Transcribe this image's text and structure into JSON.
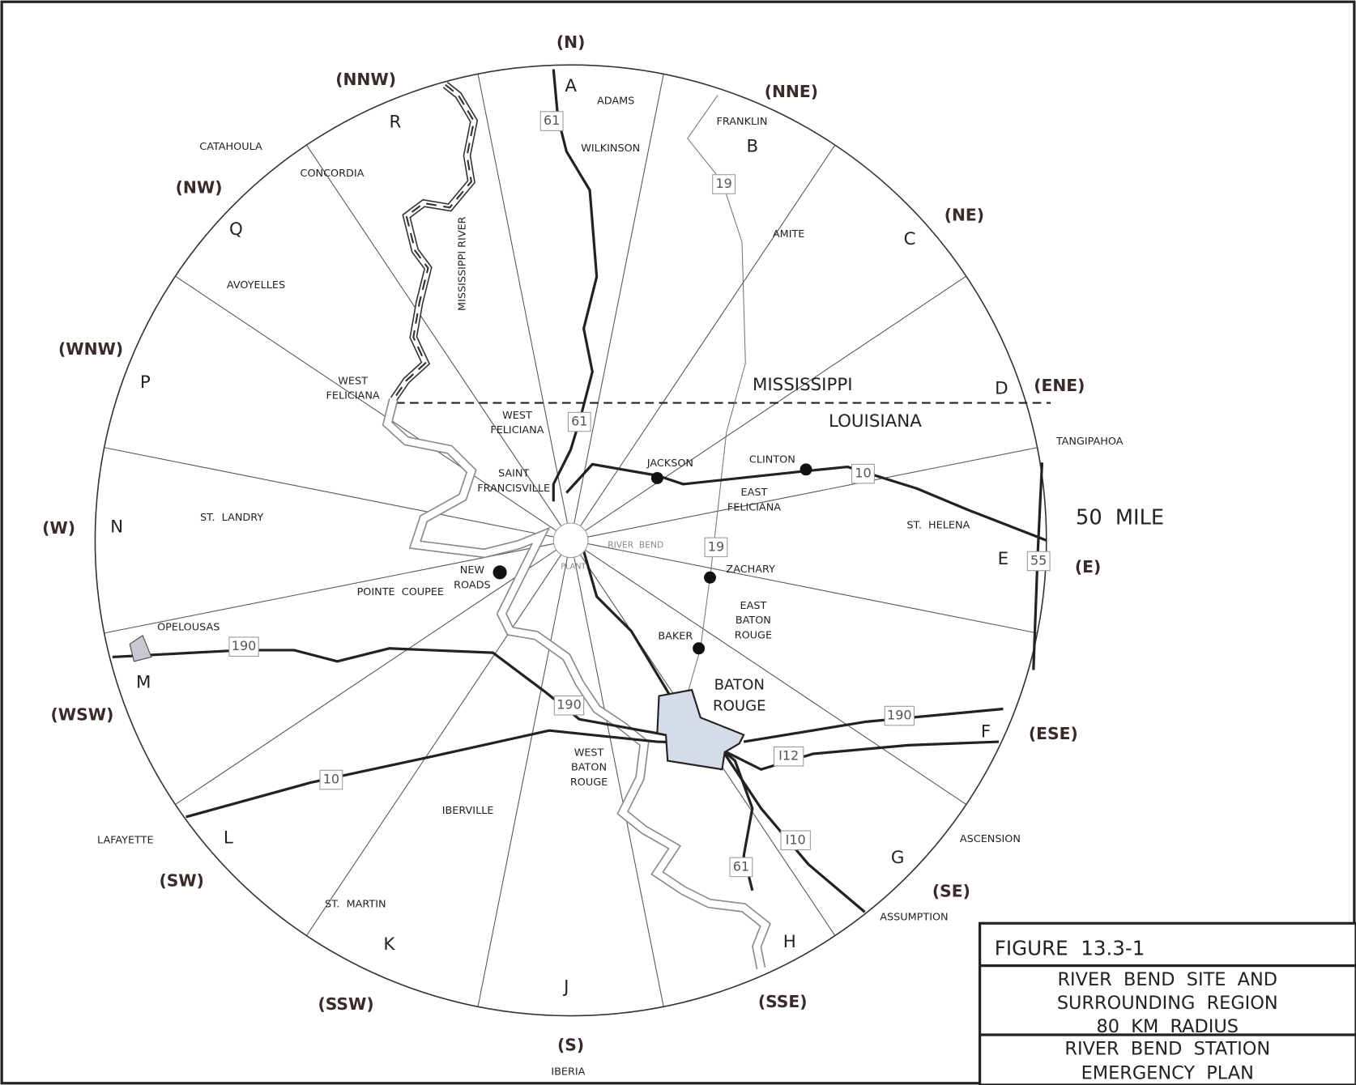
{
  "map": {
    "directions": [
      "(N)",
      "(NNE)",
      "(NE)",
      "(ENE)",
      "(E)",
      "(ESE)",
      "(SE)",
      "(SSE)",
      "(S)",
      "(SSW)",
      "(SW)",
      "(WSW)",
      "(W)",
      "(WNW)",
      "(NW)",
      "(NNW)"
    ],
    "sectors": [
      "A",
      "B",
      "C",
      "D",
      "E",
      "F",
      "G",
      "H",
      "J",
      "K",
      "L",
      "M",
      "N",
      "P",
      "Q",
      "R"
    ],
    "places": [
      [
        "ADAMS"
      ],
      [
        "FRANKLIN"
      ],
      [
        "WILKINSON"
      ],
      [
        "CATAHOULA"
      ],
      [
        "CONCORDIA"
      ],
      [
        "AMITE"
      ],
      [
        "AVOYELLES"
      ],
      [
        "WEST",
        "FELICIANA"
      ],
      [
        "WEST",
        "FELICIANA"
      ],
      [
        "SAINT",
        "FRANCISVILLE"
      ],
      [
        "JACKSON"
      ],
      [
        "CLINTON"
      ],
      [
        "EAST",
        "FELICIANA"
      ],
      [
        "TANGIPAHOA"
      ],
      [
        "ST.  LANDRY"
      ],
      [
        "ST.  HELENA"
      ],
      [
        "NEW",
        "ROADS"
      ],
      [
        "ZACHARY"
      ],
      [
        "POINTE  COUPEE"
      ],
      [
        "EAST",
        "BATON",
        "ROUGE"
      ],
      [
        "OPELOUSAS"
      ],
      [
        "BAKER"
      ],
      [
        "WEST",
        "BATON",
        "ROUGE"
      ],
      [
        "IBERVILLE"
      ],
      [
        "LAFAYETTE"
      ],
      [
        "ASCENSION"
      ],
      [
        "ST.  MARTIN"
      ],
      [
        "ASSUMPTION"
      ],
      [
        "IBERIA"
      ]
    ],
    "river": "MISSISSIPPI RIVER",
    "site": [
      "RIVER  BEND",
      "PLANT"
    ],
    "city": [
      "BATON",
      "ROUGE"
    ],
    "states": [
      "MISSISSIPPI",
      "LOUISIANA"
    ],
    "radius_label": "50  MILE",
    "highways": [
      "61",
      "19",
      "61",
      "10",
      "19",
      "55",
      "190",
      "190",
      "190",
      "I12",
      "10",
      "I10",
      "61"
    ]
  },
  "title_block": {
    "figure": "FIGURE  13.3-1",
    "title": [
      "RIVER  BEND  SITE  AND",
      "SURROUNDING  REGION",
      "80  KM  RADIUS"
    ],
    "subtitle": [
      "RIVER  BEND  STATION",
      "EMERGENCY  PLAN"
    ]
  }
}
